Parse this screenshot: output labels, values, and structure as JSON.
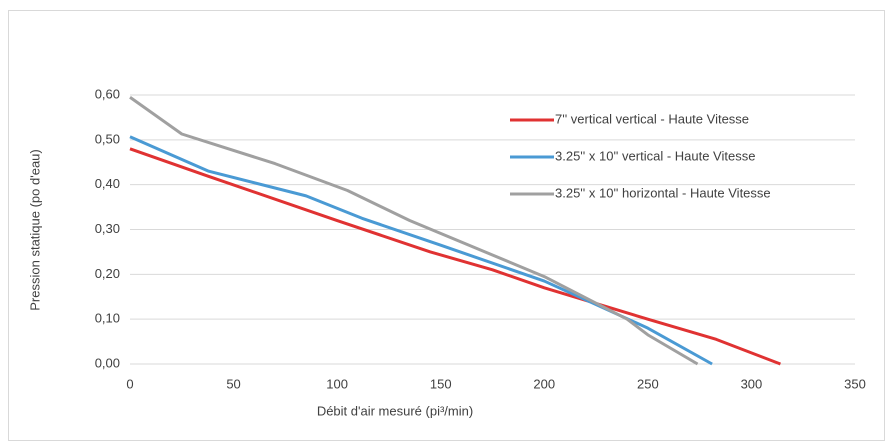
{
  "chart_data": {
    "type": "line",
    "x_label": "Débit d'air mesuré (pi³/min)",
    "y_label": "Pression statique (po d'eau)",
    "xlim": [
      0,
      350
    ],
    "xticks": [
      0,
      50,
      100,
      150,
      200,
      250,
      300,
      350
    ],
    "ylim": [
      0,
      0.6
    ],
    "yticks": [
      {
        "value": 0,
        "label": "0,00"
      },
      {
        "value": 0.1,
        "label": "0,10"
      },
      {
        "value": 0.2,
        "label": "0,20"
      },
      {
        "value": 0.3,
        "label": "0,30"
      },
      {
        "value": 0.4,
        "label": "0,40"
      },
      {
        "value": 0.5,
        "label": "0,50"
      },
      {
        "value": 0.6,
        "label": "0,60"
      }
    ],
    "grid": true,
    "legend": "upper right",
    "series": [
      {
        "name": "7'' vertical vertical - Haute Vitesse",
        "color": "#e03232",
        "x": [
          0,
          37,
          100,
          145,
          175,
          200,
          250,
          283,
          314
        ],
        "values": [
          0.48,
          0.42,
          0.32,
          0.25,
          0.21,
          0.17,
          0.1,
          0.055,
          0
        ]
      },
      {
        "name": "3.25'' x 10'' vertical - Haute Vitesse",
        "color": "#4a9ad4",
        "x": [
          0,
          38,
          85,
          112,
          150,
          200,
          250,
          281
        ],
        "values": [
          0.507,
          0.43,
          0.375,
          0.325,
          0.265,
          0.185,
          0.08,
          0
        ]
      },
      {
        "name": "3.25'' x 10'' horizontal - Haute Vitesse",
        "color": "#a0a0a0",
        "x": [
          0,
          25,
          70,
          105,
          135,
          200,
          240,
          250,
          274
        ],
        "values": [
          0.595,
          0.513,
          0.447,
          0.387,
          0.32,
          0.195,
          0.1,
          0.065,
          0
        ]
      }
    ]
  }
}
